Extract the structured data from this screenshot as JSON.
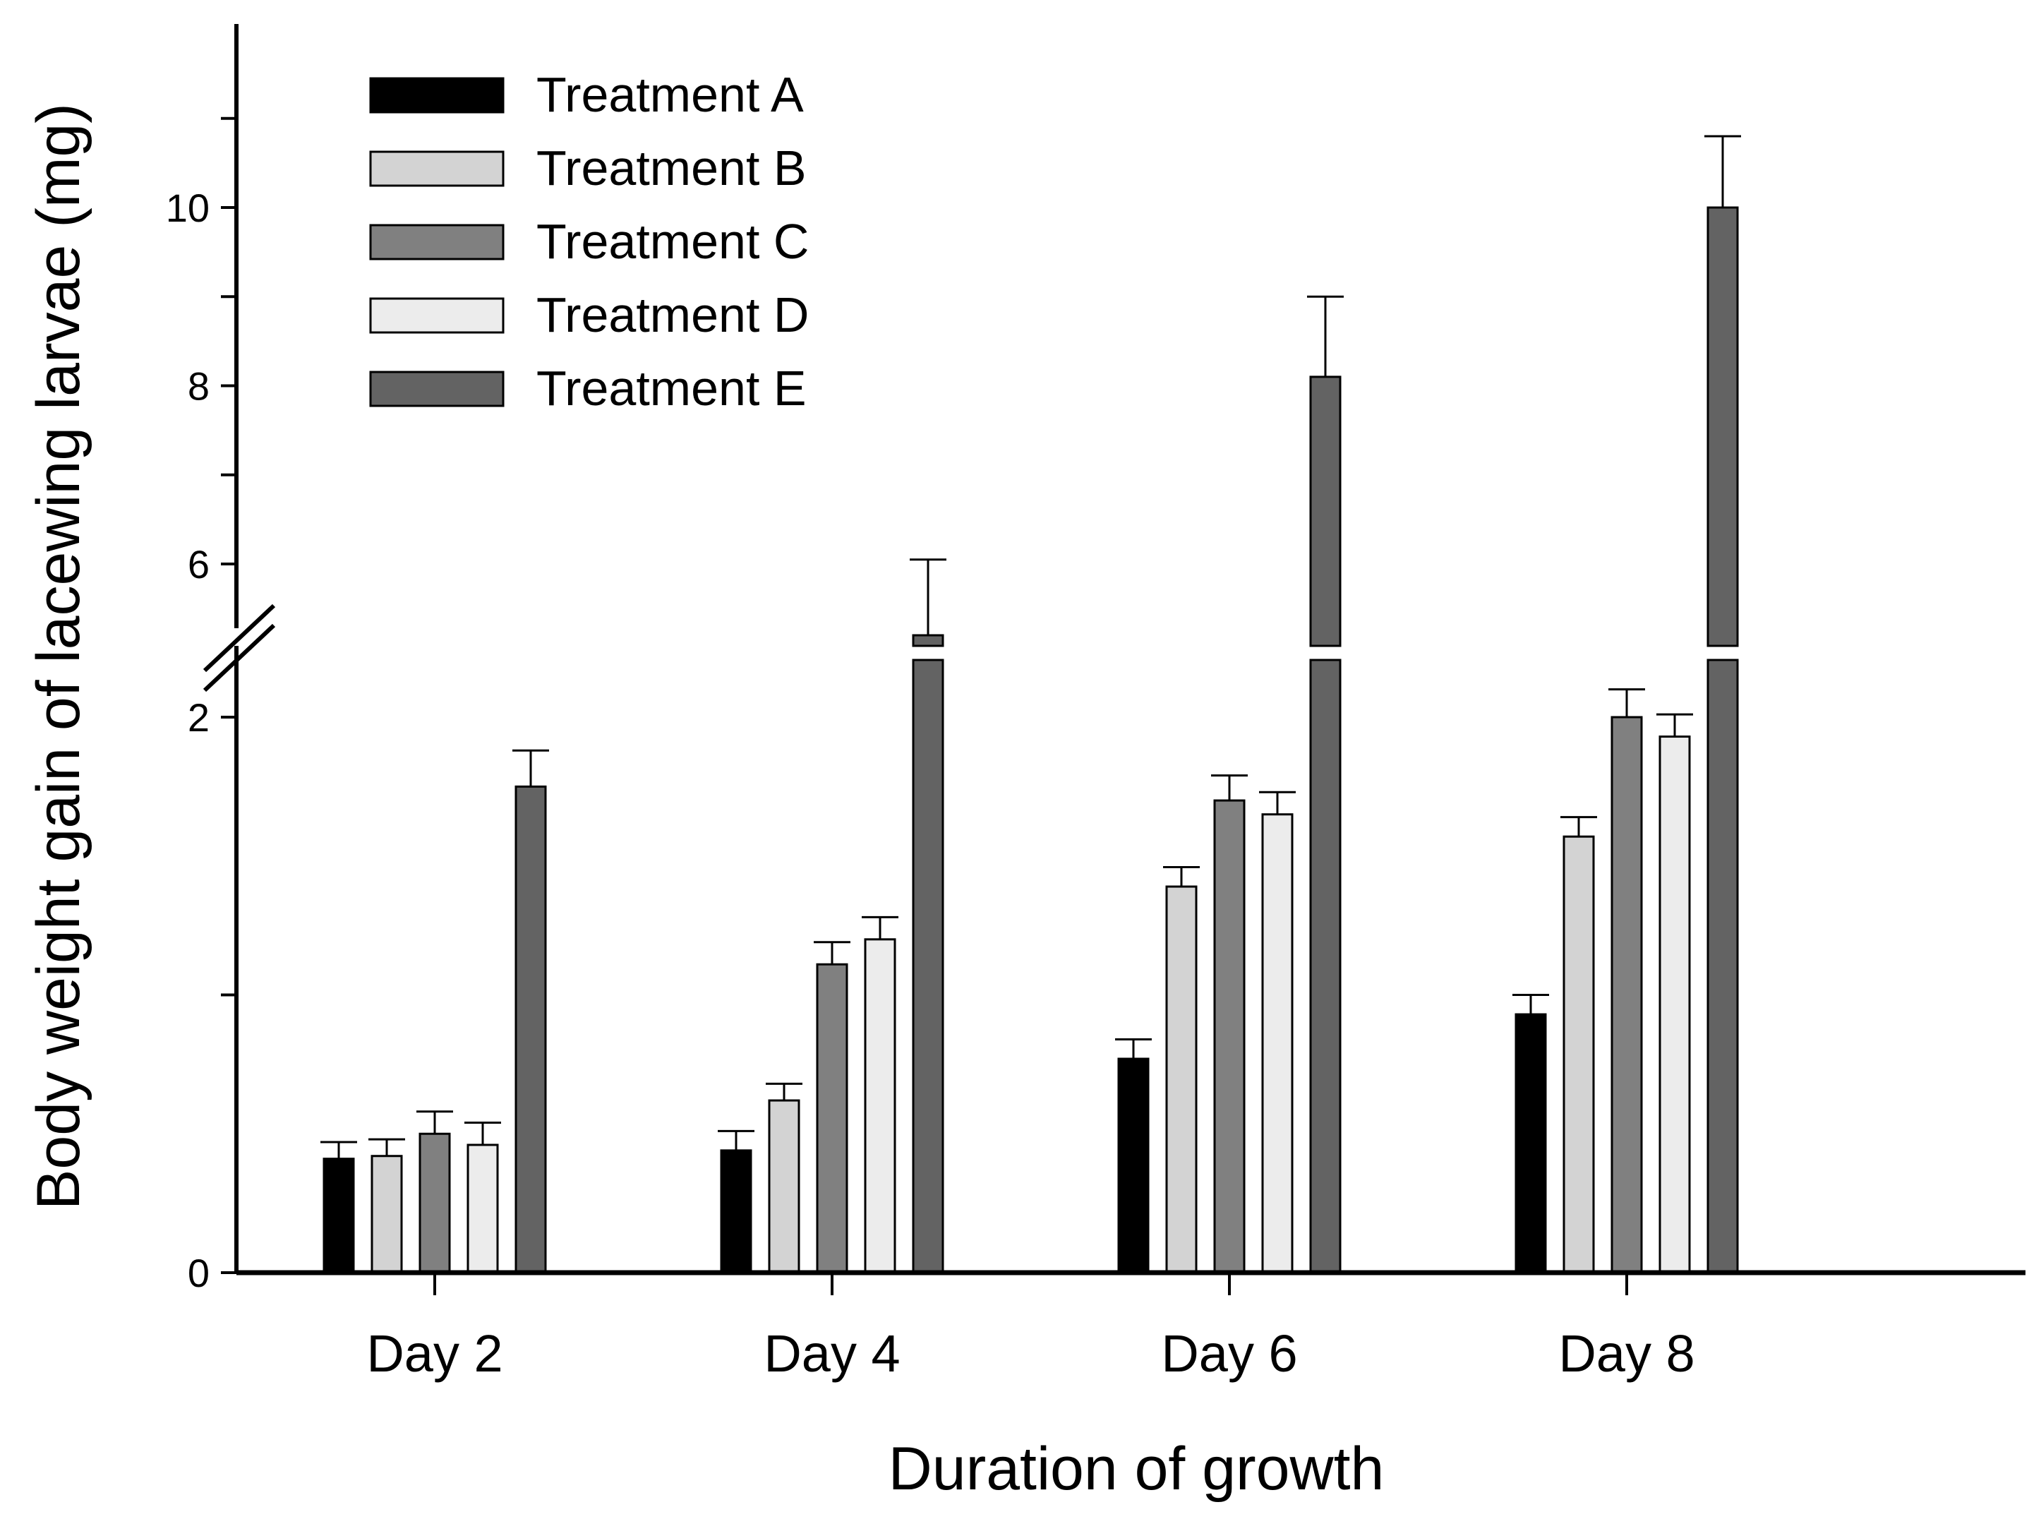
{
  "chart_data": {
    "type": "bar",
    "title": "",
    "xlabel": "Duration of growth",
    "ylabel": "Body weight gain of lacewing larvae (mg)",
    "categories": [
      "Day 2",
      "Day 4",
      "Day 6",
      "Day 8"
    ],
    "y_axis_break": {
      "lower_range": [
        0,
        2.2
      ],
      "upper_range": [
        5.0,
        12.0
      ]
    },
    "lower_ticks": [
      0,
      1,
      2
    ],
    "upper_ticks": [
      6,
      7,
      8,
      9,
      10,
      11
    ],
    "tick_labels": {
      "0": "0",
      "2": "2",
      "6": "6",
      "8": "8",
      "10": "10"
    },
    "legend_position": "top-left",
    "series": [
      {
        "name": "Treatment A",
        "color": "#000000",
        "values": [
          0.41,
          0.44,
          0.77,
          0.93
        ],
        "errors": [
          0.06,
          0.07,
          0.07,
          0.07
        ]
      },
      {
        "name": "Treatment B",
        "color": "#d3d3d3",
        "values": [
          0.42,
          0.62,
          1.39,
          1.57
        ],
        "errors": [
          0.06,
          0.06,
          0.07,
          0.07
        ]
      },
      {
        "name": "Treatment C",
        "color": "#808080",
        "values": [
          0.5,
          1.11,
          1.7,
          2.0
        ],
        "errors": [
          0.08,
          0.08,
          0.09,
          0.1
        ]
      },
      {
        "name": "Treatment D",
        "color": "#ececec",
        "values": [
          0.46,
          1.2,
          1.65,
          1.93
        ],
        "errors": [
          0.08,
          0.08,
          0.08,
          0.08
        ]
      },
      {
        "name": "Treatment E",
        "color": "#636363",
        "values": [
          1.75,
          5.2,
          8.1,
          10.0
        ],
        "errors": [
          0.13,
          0.85,
          0.9,
          0.8
        ]
      }
    ]
  }
}
